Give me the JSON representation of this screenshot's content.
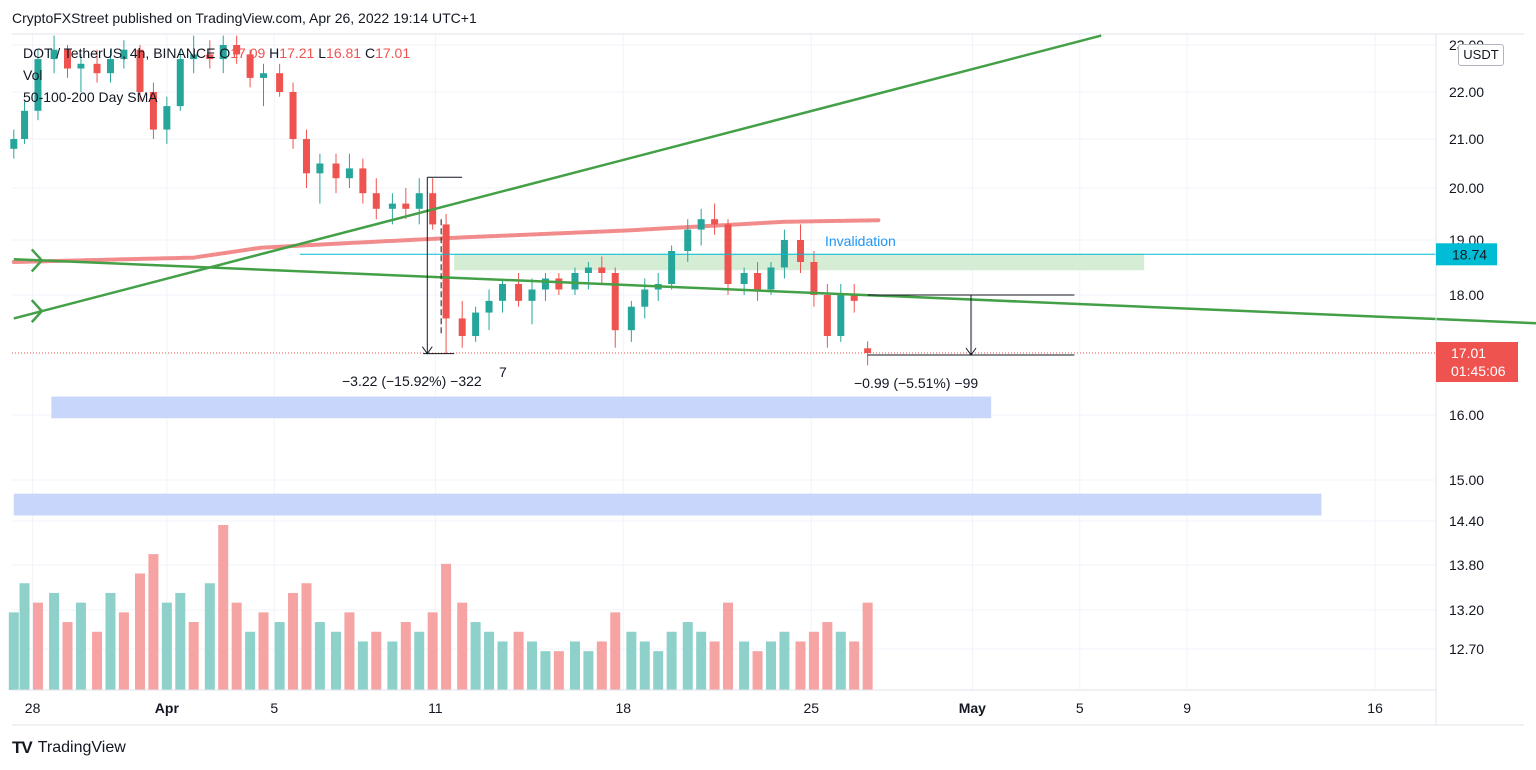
{
  "header": {
    "published_line": "CryptoFXStreet published on TradingView.com, Apr 26, 2022 19:14 UTC+1"
  },
  "legend": {
    "symbol": "DOT / TetherUS, 4h, BINANCE",
    "o_label": "O",
    "o_value": "17.09",
    "h_label": "H",
    "h_value": "17.21",
    "l_label": "L",
    "l_value": "16.81",
    "c_label": "C",
    "c_value": "17.01",
    "vol_label": "Vol",
    "sma_label": "50-100-200 Day SMA"
  },
  "price_axis": {
    "unit": "USDT",
    "ticks": [
      "23.00",
      "22.00",
      "21.00",
      "20.00",
      "19.00",
      "18.00",
      "16.00",
      "15.00",
      "14.40",
      "13.80",
      "13.20",
      "12.70"
    ],
    "tick_values": [
      23,
      22,
      21,
      20,
      19,
      18,
      16,
      15,
      14.4,
      13.8,
      13.2,
      12.7
    ],
    "level_badge": "18.74",
    "current_price": "17.01",
    "countdown": "01:45:06"
  },
  "time_axis": {
    "ticks": [
      "28",
      "Apr",
      "5",
      "11",
      "18",
      "25",
      "May",
      "5",
      "9",
      "16"
    ],
    "tick_days": [
      -4,
      1,
      5,
      11,
      18,
      25,
      31,
      35,
      39,
      46
    ]
  },
  "annotations": {
    "invalidation": "Invalidation",
    "measure_left": "−3.22 (−15.92%) −322",
    "measure_left_suffix": "7",
    "measure_right": "−0.99 (−5.51%) −99"
  },
  "footer": {
    "logo_text": "TradingView"
  },
  "colors": {
    "up": "#26a69a",
    "down": "#ef5350",
    "vol_up": "#8ed1ca",
    "vol_down": "#f5a3a3",
    "trendline": "#43a047",
    "sma": "#f28b8b",
    "invalidation_text": "#2196f3",
    "zone_green": "#d4edd4",
    "zone_blue": "#c9d6fb",
    "level_line": "#00bcd4",
    "badge_level": "#00bcd4",
    "badge_price": "#ef5350"
  },
  "chart_data": {
    "type": "candlestick",
    "x_unit": "days from 2022-04-01",
    "ylim": [
      12.3,
      23.2
    ],
    "candles": [
      {
        "d": -4.7,
        "o": 20.8,
        "h": 21.2,
        "l": 20.6,
        "c": 21.0
      },
      {
        "d": -4.3,
        "o": 21.0,
        "h": 21.8,
        "l": 20.9,
        "c": 21.6
      },
      {
        "d": -3.8,
        "o": 21.6,
        "h": 22.9,
        "l": 21.4,
        "c": 22.7
      },
      {
        "d": -3.2,
        "o": 22.7,
        "h": 23.2,
        "l": 22.4,
        "c": 22.9
      },
      {
        "d": -2.7,
        "o": 22.9,
        "h": 23.0,
        "l": 22.3,
        "c": 22.5
      },
      {
        "d": -2.2,
        "o": 22.5,
        "h": 22.8,
        "l": 22.0,
        "c": 22.6
      },
      {
        "d": -1.6,
        "o": 22.6,
        "h": 22.9,
        "l": 22.2,
        "c": 22.4
      },
      {
        "d": -1.1,
        "o": 22.4,
        "h": 22.9,
        "l": 22.2,
        "c": 22.7
      },
      {
        "d": -0.6,
        "o": 22.7,
        "h": 23.1,
        "l": 22.5,
        "c": 22.9
      },
      {
        "d": 0.0,
        "o": 22.9,
        "h": 23.0,
        "l": 21.8,
        "c": 22.0
      },
      {
        "d": 0.5,
        "o": 22.0,
        "h": 22.2,
        "l": 21.0,
        "c": 21.2
      },
      {
        "d": 1.0,
        "o": 21.2,
        "h": 21.9,
        "l": 20.9,
        "c": 21.7
      },
      {
        "d": 1.5,
        "o": 21.7,
        "h": 22.9,
        "l": 21.6,
        "c": 22.7
      },
      {
        "d": 2.0,
        "o": 22.7,
        "h": 23.2,
        "l": 22.4,
        "c": 22.8
      },
      {
        "d": 2.6,
        "o": 22.8,
        "h": 23.1,
        "l": 22.5,
        "c": 22.7
      },
      {
        "d": 3.1,
        "o": 22.7,
        "h": 23.2,
        "l": 22.4,
        "c": 23.0
      },
      {
        "d": 3.6,
        "o": 23.0,
        "h": 23.2,
        "l": 22.6,
        "c": 22.8
      },
      {
        "d": 4.1,
        "o": 22.8,
        "h": 22.9,
        "l": 22.1,
        "c": 22.3
      },
      {
        "d": 4.6,
        "o": 22.3,
        "h": 22.6,
        "l": 21.7,
        "c": 22.4
      },
      {
        "d": 5.2,
        "o": 22.4,
        "h": 22.6,
        "l": 21.9,
        "c": 22.0
      },
      {
        "d": 5.7,
        "o": 22.0,
        "h": 22.2,
        "l": 20.8,
        "c": 21.0
      },
      {
        "d": 6.2,
        "o": 21.0,
        "h": 21.2,
        "l": 20.0,
        "c": 20.3
      },
      {
        "d": 6.7,
        "o": 20.3,
        "h": 20.7,
        "l": 19.7,
        "c": 20.5
      },
      {
        "d": 7.3,
        "o": 20.5,
        "h": 20.7,
        "l": 19.9,
        "c": 20.2
      },
      {
        "d": 7.8,
        "o": 20.2,
        "h": 20.7,
        "l": 20.0,
        "c": 20.4
      },
      {
        "d": 8.3,
        "o": 20.4,
        "h": 20.6,
        "l": 19.7,
        "c": 19.9
      },
      {
        "d": 8.8,
        "o": 19.9,
        "h": 20.2,
        "l": 19.4,
        "c": 19.6
      },
      {
        "d": 9.4,
        "o": 19.6,
        "h": 19.9,
        "l": 19.3,
        "c": 19.7
      },
      {
        "d": 9.9,
        "o": 19.7,
        "h": 20.0,
        "l": 19.4,
        "c": 19.6
      },
      {
        "d": 10.4,
        "o": 19.6,
        "h": 20.2,
        "l": 19.3,
        "c": 19.9
      },
      {
        "d": 10.9,
        "o": 19.9,
        "h": 20.2,
        "l": 19.2,
        "c": 19.3
      },
      {
        "d": 11.4,
        "o": 19.3,
        "h": 19.5,
        "l": 17.0,
        "c": 17.6
      },
      {
        "d": 12.0,
        "o": 17.6,
        "h": 17.9,
        "l": 17.1,
        "c": 17.3
      },
      {
        "d": 12.5,
        "o": 17.3,
        "h": 17.8,
        "l": 17.2,
        "c": 17.7
      },
      {
        "d": 13.0,
        "o": 17.7,
        "h": 18.1,
        "l": 17.4,
        "c": 17.9
      },
      {
        "d": 13.5,
        "o": 17.9,
        "h": 18.3,
        "l": 17.7,
        "c": 18.2
      },
      {
        "d": 14.1,
        "o": 18.2,
        "h": 18.4,
        "l": 17.8,
        "c": 17.9
      },
      {
        "d": 14.6,
        "o": 17.9,
        "h": 18.3,
        "l": 17.5,
        "c": 18.1
      },
      {
        "d": 15.1,
        "o": 18.1,
        "h": 18.4,
        "l": 17.9,
        "c": 18.3
      },
      {
        "d": 15.6,
        "o": 18.3,
        "h": 18.4,
        "l": 18.0,
        "c": 18.1
      },
      {
        "d": 16.2,
        "o": 18.1,
        "h": 18.5,
        "l": 18.0,
        "c": 18.4
      },
      {
        "d": 16.7,
        "o": 18.4,
        "h": 18.6,
        "l": 18.1,
        "c": 18.5
      },
      {
        "d": 17.2,
        "o": 18.5,
        "h": 18.7,
        "l": 18.2,
        "c": 18.4
      },
      {
        "d": 17.7,
        "o": 18.4,
        "h": 18.5,
        "l": 17.1,
        "c": 17.4
      },
      {
        "d": 18.3,
        "o": 17.4,
        "h": 17.9,
        "l": 17.2,
        "c": 17.8
      },
      {
        "d": 18.8,
        "o": 17.8,
        "h": 18.3,
        "l": 17.6,
        "c": 18.1
      },
      {
        "d": 19.3,
        "o": 18.1,
        "h": 18.4,
        "l": 17.9,
        "c": 18.2
      },
      {
        "d": 19.8,
        "o": 18.2,
        "h": 18.9,
        "l": 18.1,
        "c": 18.8
      },
      {
        "d": 20.4,
        "o": 18.8,
        "h": 19.4,
        "l": 18.6,
        "c": 19.2
      },
      {
        "d": 20.9,
        "o": 19.2,
        "h": 19.6,
        "l": 18.9,
        "c": 19.4
      },
      {
        "d": 21.4,
        "o": 19.4,
        "h": 19.7,
        "l": 19.1,
        "c": 19.3
      },
      {
        "d": 21.9,
        "o": 19.3,
        "h": 19.4,
        "l": 18.0,
        "c": 18.2
      },
      {
        "d": 22.5,
        "o": 18.2,
        "h": 18.5,
        "l": 18.0,
        "c": 18.4
      },
      {
        "d": 23.0,
        "o": 18.4,
        "h": 18.6,
        "l": 17.9,
        "c": 18.1
      },
      {
        "d": 23.5,
        "o": 18.1,
        "h": 18.6,
        "l": 18.0,
        "c": 18.5
      },
      {
        "d": 24.0,
        "o": 18.5,
        "h": 19.2,
        "l": 18.3,
        "c": 19.0
      },
      {
        "d": 24.6,
        "o": 19.0,
        "h": 19.3,
        "l": 18.4,
        "c": 18.6
      },
      {
        "d": 25.1,
        "o": 18.6,
        "h": 18.8,
        "l": 17.8,
        "c": 18.0
      },
      {
        "d": 25.6,
        "o": 18.0,
        "h": 18.2,
        "l": 17.1,
        "c": 17.3
      },
      {
        "d": 26.1,
        "o": 17.3,
        "h": 18.2,
        "l": 17.2,
        "c": 18.0
      },
      {
        "d": 26.6,
        "o": 18.0,
        "h": 18.2,
        "l": 17.7,
        "c": 17.9
      },
      {
        "d": 27.1,
        "o": 17.09,
        "h": 17.21,
        "l": 16.81,
        "c": 17.01
      }
    ],
    "volumes": [
      {
        "d": -4.7,
        "v": 8,
        "up": true
      },
      {
        "d": -4.3,
        "v": 11,
        "up": true
      },
      {
        "d": -3.8,
        "v": 9,
        "up": false
      },
      {
        "d": -3.2,
        "v": 10,
        "up": true
      },
      {
        "d": -2.7,
        "v": 7,
        "up": false
      },
      {
        "d": -2.2,
        "v": 9,
        "up": true
      },
      {
        "d": -1.6,
        "v": 6,
        "up": false
      },
      {
        "d": -1.1,
        "v": 10,
        "up": true
      },
      {
        "d": -0.6,
        "v": 8,
        "up": false
      },
      {
        "d": 0.0,
        "v": 12,
        "up": false
      },
      {
        "d": 0.5,
        "v": 14,
        "up": false
      },
      {
        "d": 1.0,
        "v": 9,
        "up": true
      },
      {
        "d": 1.5,
        "v": 10,
        "up": true
      },
      {
        "d": 2.0,
        "v": 7,
        "up": false
      },
      {
        "d": 2.6,
        "v": 11,
        "up": true
      },
      {
        "d": 3.1,
        "v": 17,
        "up": false
      },
      {
        "d": 3.6,
        "v": 9,
        "up": false
      },
      {
        "d": 4.1,
        "v": 6,
        "up": true
      },
      {
        "d": 4.6,
        "v": 8,
        "up": false
      },
      {
        "d": 5.2,
        "v": 7,
        "up": true
      },
      {
        "d": 5.7,
        "v": 10,
        "up": false
      },
      {
        "d": 6.2,
        "v": 11,
        "up": false
      },
      {
        "d": 6.7,
        "v": 7,
        "up": true
      },
      {
        "d": 7.3,
        "v": 6,
        "up": true
      },
      {
        "d": 7.8,
        "v": 8,
        "up": false
      },
      {
        "d": 8.3,
        "v": 5,
        "up": true
      },
      {
        "d": 8.8,
        "v": 6,
        "up": false
      },
      {
        "d": 9.4,
        "v": 5,
        "up": true
      },
      {
        "d": 9.9,
        "v": 7,
        "up": false
      },
      {
        "d": 10.4,
        "v": 6,
        "up": true
      },
      {
        "d": 10.9,
        "v": 8,
        "up": false
      },
      {
        "d": 11.4,
        "v": 13,
        "up": false
      },
      {
        "d": 12.0,
        "v": 9,
        "up": false
      },
      {
        "d": 12.5,
        "v": 7,
        "up": true
      },
      {
        "d": 13.0,
        "v": 6,
        "up": true
      },
      {
        "d": 13.5,
        "v": 5,
        "up": true
      },
      {
        "d": 14.1,
        "v": 6,
        "up": false
      },
      {
        "d": 14.6,
        "v": 5,
        "up": true
      },
      {
        "d": 15.1,
        "v": 4,
        "up": true
      },
      {
        "d": 15.6,
        "v": 4,
        "up": false
      },
      {
        "d": 16.2,
        "v": 5,
        "up": true
      },
      {
        "d": 16.7,
        "v": 4,
        "up": true
      },
      {
        "d": 17.2,
        "v": 5,
        "up": false
      },
      {
        "d": 17.7,
        "v": 8,
        "up": false
      },
      {
        "d": 18.3,
        "v": 6,
        "up": true
      },
      {
        "d": 18.8,
        "v": 5,
        "up": true
      },
      {
        "d": 19.3,
        "v": 4,
        "up": true
      },
      {
        "d": 19.8,
        "v": 6,
        "up": true
      },
      {
        "d": 20.4,
        "v": 7,
        "up": true
      },
      {
        "d": 20.9,
        "v": 6,
        "up": true
      },
      {
        "d": 21.4,
        "v": 5,
        "up": false
      },
      {
        "d": 21.9,
        "v": 9,
        "up": false
      },
      {
        "d": 22.5,
        "v": 5,
        "up": true
      },
      {
        "d": 23.0,
        "v": 4,
        "up": false
      },
      {
        "d": 23.5,
        "v": 5,
        "up": true
      },
      {
        "d": 24.0,
        "v": 6,
        "up": true
      },
      {
        "d": 24.6,
        "v": 5,
        "up": false
      },
      {
        "d": 25.1,
        "v": 6,
        "up": false
      },
      {
        "d": 25.6,
        "v": 7,
        "up": false
      },
      {
        "d": 26.1,
        "v": 6,
        "up": true
      },
      {
        "d": 26.6,
        "v": 5,
        "up": false
      },
      {
        "d": 27.1,
        "v": 9,
        "up": false
      }
    ],
    "sma": [
      {
        "d": -4.7,
        "y": 18.6
      },
      {
        "d": 2,
        "y": 18.68
      },
      {
        "d": 4.5,
        "y": 18.86
      },
      {
        "d": 8,
        "y": 18.95
      },
      {
        "d": 12,
        "y": 19.05
      },
      {
        "d": 18,
        "y": 19.18
      },
      {
        "d": 24,
        "y": 19.35
      },
      {
        "d": 27.5,
        "y": 19.38
      }
    ],
    "trendlines": [
      {
        "name": "rising",
        "d1": -4.7,
        "y1": 17.6,
        "d2": 35.8,
        "y2": 23.2
      },
      {
        "name": "falling",
        "d1": -4.7,
        "y1": 18.65,
        "d2": 55.5,
        "y2": 17.45
      }
    ],
    "zones": [
      {
        "name": "invalidation-zone",
        "d1": 11.7,
        "d2": 37.4,
        "y1": 18.45,
        "y2": 18.75,
        "color": "green"
      },
      {
        "name": "support-zone-1",
        "d1": -3.3,
        "d2": 31.7,
        "y1": 15.95,
        "y2": 16.3,
        "color": "blue"
      },
      {
        "name": "support-zone-2",
        "d1": -4.7,
        "d2": 44.0,
        "y1": 14.48,
        "y2": 14.8,
        "color": "blue"
      }
    ],
    "level_line": 18.74,
    "current_price": 17.01,
    "measures": [
      {
        "name": "measure-left",
        "d1": 10.7,
        "d2": 11.7,
        "y_from": 20.22,
        "y_to": 17.0
      },
      {
        "name": "measure-right",
        "d1": 27.1,
        "d2": 34.8,
        "y_from": 18.0,
        "y_to": 17.01
      }
    ]
  }
}
